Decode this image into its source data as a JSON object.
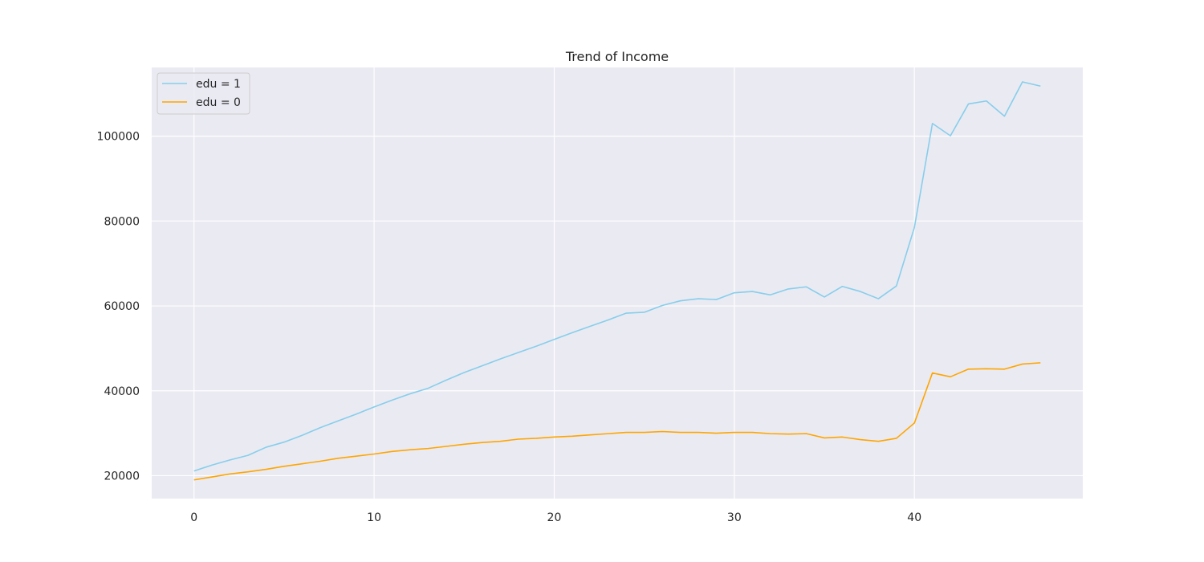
{
  "chart_data": {
    "type": "line",
    "title": "Trend of Income",
    "xlabel": "",
    "ylabel": "",
    "xlim": [
      -2.35,
      49.35
    ],
    "ylim": [
      14600,
      116200
    ],
    "x_ticks": [
      0,
      10,
      20,
      30,
      40
    ],
    "y_ticks": [
      20000,
      40000,
      60000,
      80000,
      100000
    ],
    "grid": true,
    "legend": "upper-left",
    "colors": {
      "background": "#eaeaf2",
      "grid": "#ffffff"
    },
    "x": [
      0,
      1,
      2,
      3,
      4,
      5,
      6,
      7,
      8,
      9,
      10,
      11,
      12,
      13,
      14,
      15,
      16,
      17,
      18,
      19,
      20,
      21,
      22,
      23,
      24,
      25,
      26,
      27,
      28,
      29,
      30,
      31,
      32,
      33,
      34,
      35,
      36,
      37,
      38,
      39,
      40,
      41,
      42,
      43,
      44,
      45,
      46,
      47
    ],
    "series": [
      {
        "name": "edu = 1",
        "color": "#87ceeb",
        "values": [
          21100,
          22500,
          23700,
          24800,
          26700,
          27900,
          29500,
          31300,
          32900,
          34500,
          36200,
          37800,
          39300,
          40600,
          42500,
          44300,
          45900,
          47500,
          49000,
          50500,
          52100,
          53700,
          55200,
          56700,
          58300,
          58500,
          60100,
          61200,
          61700,
          61500,
          63100,
          63400,
          62600,
          64000,
          64500,
          62100,
          64600,
          63400,
          61700,
          64700,
          78500,
          103000,
          100100,
          107600,
          108300,
          104700,
          112800,
          111800
        ]
      },
      {
        "name": "edu = 0",
        "color": "#ffa500",
        "values": [
          19000,
          19700,
          20400,
          20900,
          21500,
          22200,
          22800,
          23400,
          24100,
          24600,
          25100,
          25700,
          26100,
          26400,
          26900,
          27400,
          27800,
          28100,
          28600,
          28800,
          29100,
          29300,
          29600,
          29900,
          30200,
          30200,
          30400,
          30200,
          30200,
          30000,
          30200,
          30200,
          29900,
          29800,
          29900,
          28900,
          29100,
          28500,
          28100,
          28800,
          32400,
          44200,
          43300,
          45100,
          45200,
          45100,
          46300,
          46600
        ]
      }
    ]
  }
}
